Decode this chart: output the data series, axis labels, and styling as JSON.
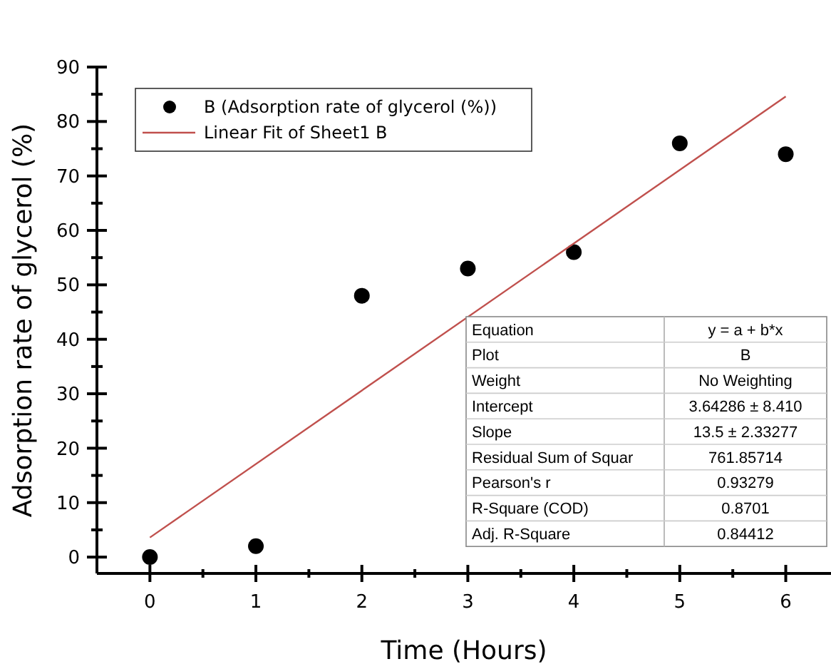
{
  "chart_data": {
    "type": "scatter",
    "xlabel": "Time (Hours)",
    "ylabel": "Adsorption rate of glycerol (%)",
    "xlim": [
      -0.5,
      6.4
    ],
    "ylim": [
      -3,
      90
    ],
    "xticks": [
      0,
      {
        "value": 0.5,
        "label": null
      },
      1,
      {
        "value": 1.5,
        "label": null
      },
      2,
      {
        "value": 2.5,
        "label": null
      },
      3,
      {
        "value": 3.5,
        "label": null
      },
      4,
      {
        "value": 4.5,
        "label": null
      },
      5,
      {
        "value": 5.5,
        "label": null
      },
      6
    ],
    "yticks": [
      0,
      {
        "value": 5,
        "label": null
      },
      10,
      {
        "value": 15,
        "label": null
      },
      20,
      {
        "value": 25,
        "label": null
      },
      30,
      {
        "value": 35,
        "label": null
      },
      40,
      {
        "value": 45,
        "label": null
      },
      50,
      {
        "value": 55,
        "label": null
      },
      60,
      {
        "value": 65,
        "label": null
      },
      70,
      {
        "value": 75,
        "label": null
      },
      80,
      {
        "value": 85,
        "label": null
      },
      90
    ],
    "grid": false,
    "legend": "top left",
    "series": [
      {
        "name": "B (Adsorption rate of glycerol (%))",
        "color": "#000000",
        "marker": "circle",
        "x": [
          0,
          1,
          2,
          3,
          4,
          5,
          6
        ],
        "values": [
          0,
          2,
          48,
          53,
          56,
          76,
          74
        ]
      },
      {
        "name": "Linear Fit of Sheet1 B",
        "type": "line",
        "color": "#c0504d",
        "marker": "none",
        "line_style": "solid",
        "x": [
          0,
          6
        ],
        "values": [
          3.6,
          84.6
        ]
      }
    ],
    "annotations": [
      "Equation",
      "y = a + b*x",
      "Plot",
      "B",
      "Weight",
      "No Weighting",
      "Intercept",
      "3.64286 ± 8.410",
      "Slope",
      "13.5 ± 2.33277",
      "Residual Sum of Squar",
      "761.85714",
      "Pearson's r",
      "0.93279",
      "R-Square (COD)",
      "0.8701",
      "Adj. R-Square",
      "0.84412"
    ]
  }
}
